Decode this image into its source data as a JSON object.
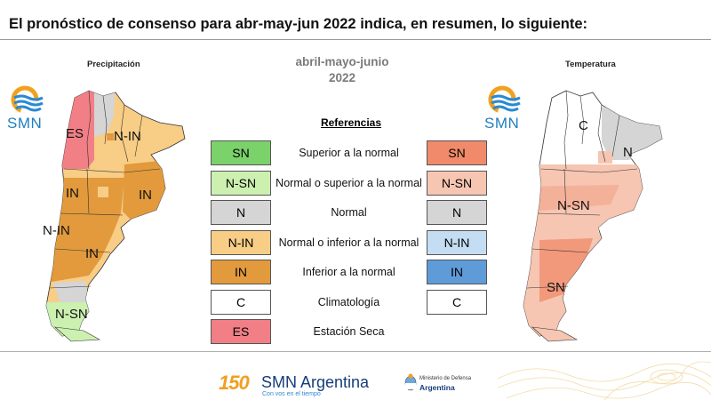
{
  "title": "El pronóstico de consenso para  abr-may-jun 2022 indica, en resumen, lo siguiente:",
  "period": {
    "line1": "abril-mayo-junio",
    "line2": "2022"
  },
  "panels": {
    "left": "Precipitación",
    "right": "Temperatura"
  },
  "logo_text": "SMN",
  "references_title": "Referencias",
  "legend": [
    {
      "left": "SN",
      "left_color": "#7bd16a",
      "desc": "Superior a la normal",
      "right": "SN",
      "right_color": "#f08a6a"
    },
    {
      "left": "N-SN",
      "left_color": "#ccf0b0",
      "desc": "Normal o superior a la normal",
      "right": "N-SN",
      "right_color": "#f6c6b2"
    },
    {
      "left": "N",
      "left_color": "#d5d5d5",
      "desc": "Normal",
      "right": "N",
      "right_color": "#d5d5d5"
    },
    {
      "left": "N-IN",
      "left_color": "#f8cd86",
      "desc": "Normal o inferior a la normal",
      "right": "N-IN",
      "right_color": "#c4ddf2"
    },
    {
      "left": "IN",
      "left_color": "#e29a3c",
      "desc": "Inferior a la normal",
      "right": "IN",
      "right_color": "#5f9bd7"
    },
    {
      "left": "C",
      "left_color": "#ffffff",
      "desc": "Climatología",
      "right": "C",
      "right_color": "#ffffff"
    },
    {
      "left": "ES",
      "left_color": "#f27f86",
      "desc": "Estación Seca",
      "right": "",
      "right_color": ""
    }
  ],
  "map_labels": {
    "precip": [
      "ES",
      "N-IN",
      "IN",
      "IN",
      "N-IN",
      "IN",
      "N-SN"
    ],
    "temp": [
      "C",
      "N",
      "N-SN",
      "SN"
    ]
  },
  "footer": {
    "anniversary": "150",
    "org": "SMN Argentina",
    "tagline": "Con vos en el tiempo",
    "ministry_line1": "Ministerio de Defensa",
    "ministry_line2": "Argentina"
  }
}
